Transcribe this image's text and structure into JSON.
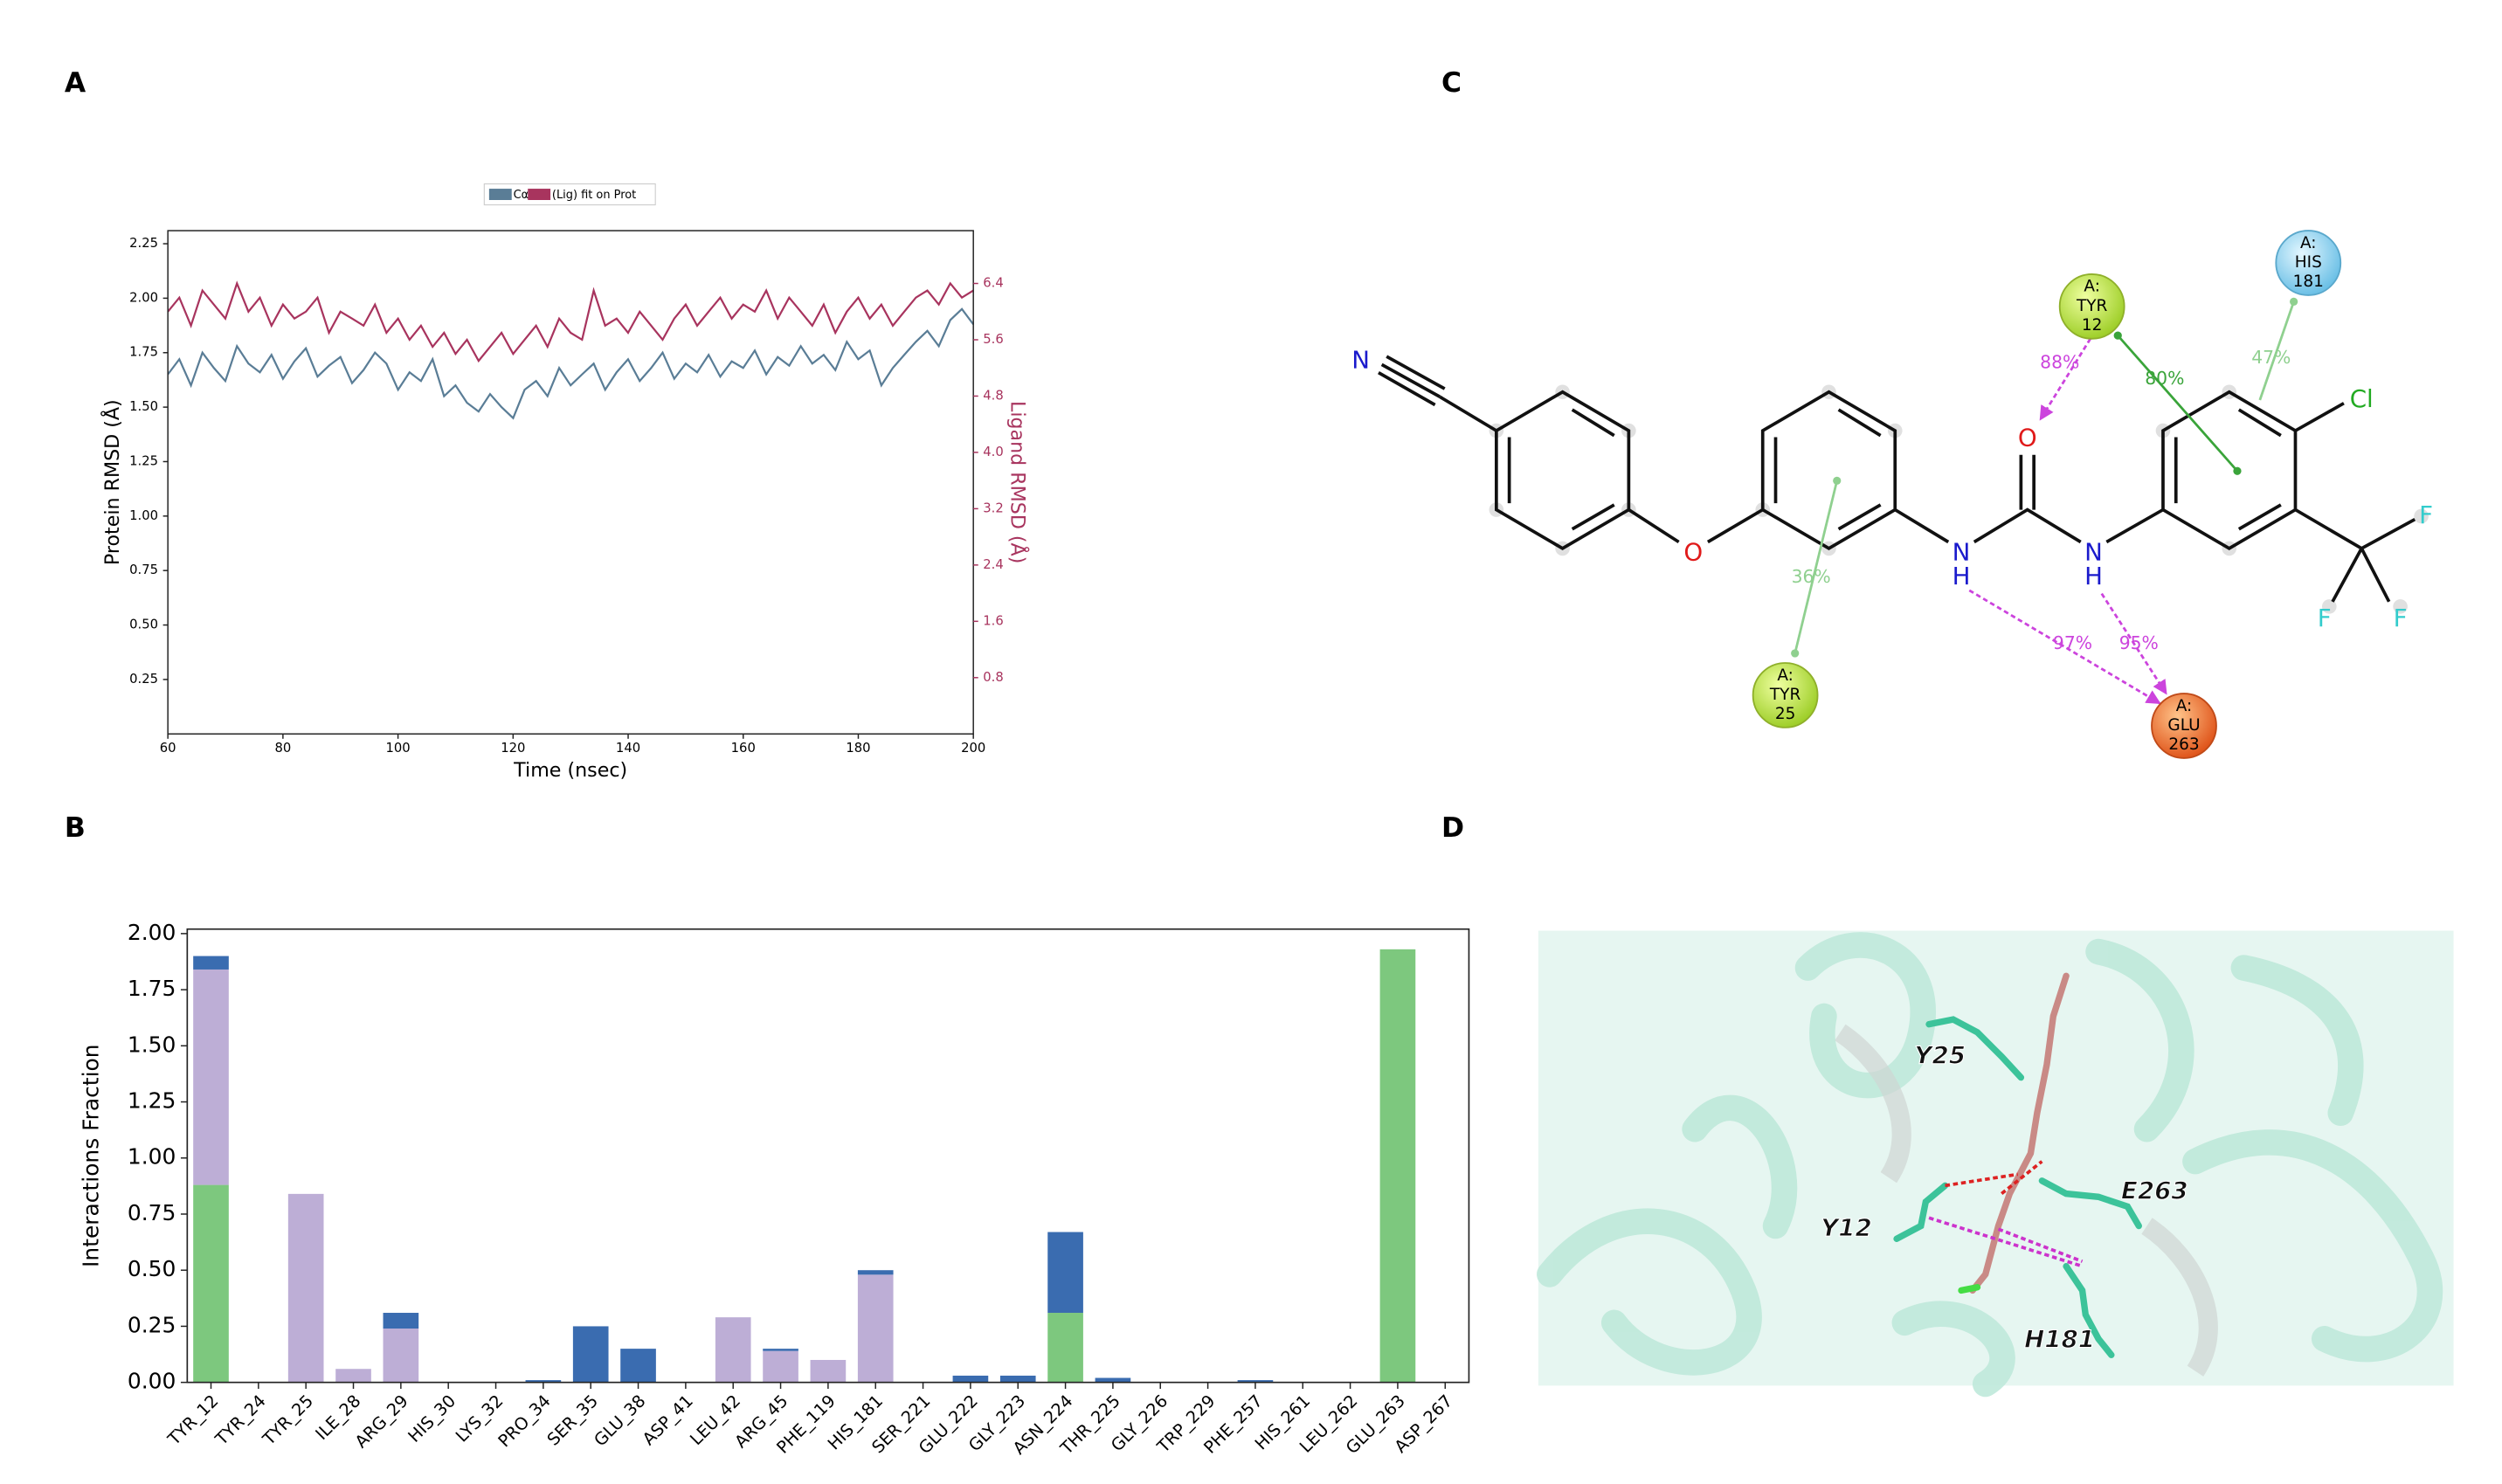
{
  "panel_labels": [
    "A",
    "B",
    "C",
    "D"
  ],
  "chart_data": [
    {
      "type": "line",
      "xlabel": "Time (nsec)",
      "ylabel": "Protein RMSD (Å)",
      "y2label": "Ligand RMSD (Å)",
      "x": [
        60,
        62,
        64,
        66,
        68,
        70,
        72,
        74,
        76,
        78,
        80,
        82,
        84,
        86,
        88,
        90,
        92,
        94,
        96,
        98,
        100,
        102,
        104,
        106,
        108,
        110,
        112,
        114,
        116,
        118,
        120,
        122,
        124,
        126,
        128,
        130,
        132,
        134,
        136,
        138,
        140,
        142,
        144,
        146,
        148,
        150,
        152,
        154,
        156,
        158,
        160,
        162,
        164,
        166,
        168,
        170,
        172,
        174,
        176,
        178,
        180,
        182,
        184,
        186,
        188,
        190,
        192,
        194,
        196,
        198,
        200
      ],
      "series": [
        {
          "name": "Cα",
          "color": "#5a7d96",
          "values": [
            1.65,
            1.72,
            1.6,
            1.75,
            1.68,
            1.62,
            1.78,
            1.7,
            1.66,
            1.74,
            1.63,
            1.71,
            1.77,
            1.64,
            1.69,
            1.73,
            1.61,
            1.67,
            1.75,
            1.7,
            1.58,
            1.66,
            1.62,
            1.72,
            1.55,
            1.6,
            1.52,
            1.48,
            1.56,
            1.5,
            1.45,
            1.58,
            1.62,
            1.55,
            1.68,
            1.6,
            1.65,
            1.7,
            1.58,
            1.66,
            1.72,
            1.62,
            1.68,
            1.75,
            1.63,
            1.7,
            1.66,
            1.74,
            1.64,
            1.71,
            1.68,
            1.76,
            1.65,
            1.73,
            1.69,
            1.78,
            1.7,
            1.74,
            1.67,
            1.8,
            1.72,
            1.76,
            1.6,
            1.68,
            1.74,
            1.8,
            1.85,
            1.78,
            1.9,
            1.95,
            1.88
          ]
        },
        {
          "name": "(Lig) fit on Prot",
          "color": "#a8345e",
          "axis": "y2",
          "values": [
            6.0,
            6.2,
            5.8,
            6.3,
            6.1,
            5.9,
            6.4,
            6.0,
            6.2,
            5.8,
            6.1,
            5.9,
            6.0,
            6.2,
            5.7,
            6.0,
            5.9,
            5.8,
            6.1,
            5.7,
            5.9,
            5.6,
            5.8,
            5.5,
            5.7,
            5.4,
            5.6,
            5.3,
            5.5,
            5.7,
            5.4,
            5.6,
            5.8,
            5.5,
            5.9,
            5.7,
            5.6,
            6.3,
            5.8,
            5.9,
            5.7,
            6.0,
            5.8,
            5.6,
            5.9,
            6.1,
            5.8,
            6.0,
            6.2,
            5.9,
            6.1,
            6.0,
            6.3,
            5.9,
            6.2,
            6.0,
            5.8,
            6.1,
            5.7,
            6.0,
            6.2,
            5.9,
            6.1,
            5.8,
            6.0,
            6.2,
            6.3,
            6.1,
            6.4,
            6.2,
            6.3
          ]
        }
      ],
      "xlim": [
        60,
        200
      ],
      "ylim": [
        0,
        2.31
      ],
      "y2lim": [
        0,
        7.15
      ],
      "xticks": [
        60,
        80,
        100,
        120,
        140,
        160,
        180,
        200
      ],
      "yticks": [
        0.25,
        {
          "value": 0.5,
          "label": "0.50"
        },
        0.75,
        {
          "value": 1,
          "label": "1.00"
        },
        1.25,
        {
          "value": 1.5,
          "label": "1.50"
        },
        1.75,
        {
          "value": 2,
          "label": "2.00"
        },
        2.25
      ],
      "y2ticks": [
        0.8,
        1.6,
        2.4,
        3.2,
        {
          "value": 4,
          "label": "4.0"
        },
        4.8,
        5.6,
        6.4
      ]
    },
    {
      "type": "bar",
      "stacked": true,
      "ylabel": "Interactions Fraction",
      "categories": [
        "TYR_12",
        "TYR_24",
        "TYR_25",
        "ILE_28",
        "ARG_29",
        "HIS_30",
        "LYS_32",
        "PRO_34",
        "SER_35",
        "GLU_38",
        "ASP_41",
        "LEU_42",
        "ARG_45",
        "PHE_119",
        "HIS_181",
        "SER_221",
        "GLU_222",
        "GLY_223",
        "ASN_224",
        "THR_225",
        "GLY_226",
        "TRP_229",
        "PHE_257",
        "HIS_261",
        "LEU_262",
        "GLU_263",
        "ASP_267"
      ],
      "series": [
        {
          "color": "#7dc87e",
          "values": [
            0.88,
            0,
            0,
            0,
            0,
            0,
            0,
            0,
            0,
            0,
            0,
            0,
            0,
            0,
            0,
            0,
            0,
            0,
            0.31,
            0,
            0,
            0,
            0,
            0,
            0,
            1.93,
            0
          ]
        },
        {
          "color": "#bdaed6",
          "values": [
            0.96,
            0,
            0.84,
            0.06,
            0.24,
            0,
            0,
            0,
            0,
            0,
            0,
            0.29,
            0.14,
            0.1,
            0.48,
            0,
            0,
            0,
            0,
            0,
            0,
            0,
            0,
            0,
            0,
            0,
            0
          ]
        },
        {
          "color": "#3a6cb0",
          "values": [
            0.06,
            0,
            0,
            0,
            0.07,
            0,
            0,
            0.01,
            0.25,
            0.15,
            0,
            0,
            0.01,
            0,
            0.02,
            0,
            0.03,
            0.03,
            0.36,
            0.02,
            0,
            0,
            0.01,
            0,
            0,
            0,
            0
          ]
        }
      ],
      "ylim": [
        0,
        2.02
      ],
      "yticks": [
        {
          "value": 0,
          "label": "0.00"
        },
        0.25,
        {
          "value": 0.5,
          "label": "0.50"
        },
        0.75,
        {
          "value": 1,
          "label": "1.00"
        },
        1.25,
        {
          "value": 1.5,
          "label": "1.50"
        },
        1.75,
        {
          "value": 2,
          "label": "2.00"
        }
      ]
    }
  ],
  "diagram": {
    "atoms": [
      "N",
      "O",
      "O",
      "N",
      "H",
      "N",
      "H",
      "Cl",
      "F",
      "F",
      "F"
    ],
    "residues": [
      {
        "chain": "A:",
        "name": "TYR",
        "number": "12"
      },
      {
        "chain": "A:",
        "name": "HIS",
        "number": "181"
      },
      {
        "chain": "A:",
        "name": "TYR",
        "number": "25"
      },
      {
        "chain": "A:",
        "name": "GLU",
        "number": "263"
      }
    ],
    "interactions": [
      "88%",
      "80%",
      "47%",
      "36%",
      "97%",
      "95%"
    ]
  },
  "image": {
    "labels": [
      "Y25",
      "E263",
      "Y12",
      "H181"
    ]
  }
}
